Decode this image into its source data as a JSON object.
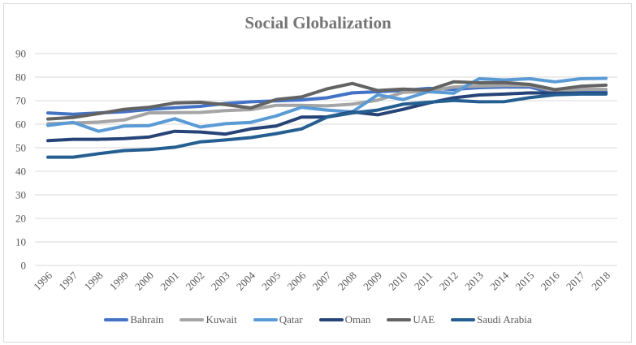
{
  "chart_data": {
    "type": "line",
    "title": "Social Globalization",
    "xlabel": "",
    "ylabel": "",
    "ylim": [
      0,
      90
    ],
    "yticks": [
      0,
      10,
      20,
      30,
      40,
      50,
      60,
      70,
      80,
      90
    ],
    "grid": true,
    "legend_position": "bottom",
    "categories": [
      "1996",
      "1997",
      "1998",
      "1999",
      "2000",
      "2001",
      "2002",
      "2003",
      "2004",
      "2005",
      "2006",
      "2007",
      "2008",
      "2009",
      "2010",
      "2011",
      "2012",
      "2013",
      "2014",
      "2015",
      "2016",
      "2017",
      "2018"
    ],
    "series": [
      {
        "name": "Bahrain",
        "color": "#4472C4",
        "values": [
          64.8,
          64.2,
          64.8,
          65.3,
          66.3,
          67.0,
          67.6,
          68.8,
          69.5,
          69.9,
          70.3,
          71.2,
          73.3,
          73.8,
          74.3,
          75.2,
          74.8,
          75.5,
          75.8,
          75.8,
          73.0,
          74.2,
          73.8
        ]
      },
      {
        "name": "Kuwait",
        "color": "#A5A5A5",
        "values": [
          60.2,
          60.5,
          60.9,
          61.8,
          64.8,
          64.9,
          65.0,
          65.8,
          66.2,
          68.0,
          68.0,
          67.8,
          68.5,
          70.2,
          73.5,
          74.0,
          75.8,
          76.2,
          76.5,
          76.5,
          74.0,
          74.8,
          74.8
        ]
      },
      {
        "name": "Qatar",
        "color": "#5B9BD5",
        "values": [
          59.5,
          60.8,
          57.0,
          59.2,
          59.4,
          62.3,
          58.8,
          60.2,
          60.8,
          63.5,
          67.2,
          66.0,
          65.2,
          72.5,
          70.5,
          73.8,
          73.2,
          79.3,
          78.8,
          79.3,
          78.0,
          79.3,
          79.5
        ]
      },
      {
        "name": "Oman",
        "color": "#264478",
        "values": [
          53.0,
          53.6,
          53.6,
          53.9,
          54.6,
          57.0,
          56.7,
          55.8,
          58.0,
          59.2,
          63.0,
          63.1,
          65.2,
          64.0,
          66.3,
          69.0,
          71.2,
          72.4,
          72.8,
          73.3,
          73.2,
          73.2,
          73.2
        ]
      },
      {
        "name": "UAE",
        "color": "#636363",
        "values": [
          62.2,
          62.9,
          64.5,
          66.3,
          67.2,
          69.0,
          69.3,
          68.3,
          66.9,
          70.5,
          71.6,
          75.0,
          77.3,
          74.3,
          74.9,
          74.5,
          78.0,
          77.6,
          77.7,
          76.9,
          74.7,
          76.1,
          76.6
        ]
      },
      {
        "name": "Saudi Arabia",
        "color": "#255E91",
        "values": [
          46.0,
          46.0,
          47.5,
          48.8,
          49.2,
          50.2,
          52.5,
          53.3,
          54.3,
          56.0,
          58.0,
          63.0,
          64.8,
          66.0,
          68.5,
          69.3,
          70.1,
          69.5,
          69.6,
          71.3,
          72.5,
          72.8,
          72.8
        ]
      }
    ]
  }
}
